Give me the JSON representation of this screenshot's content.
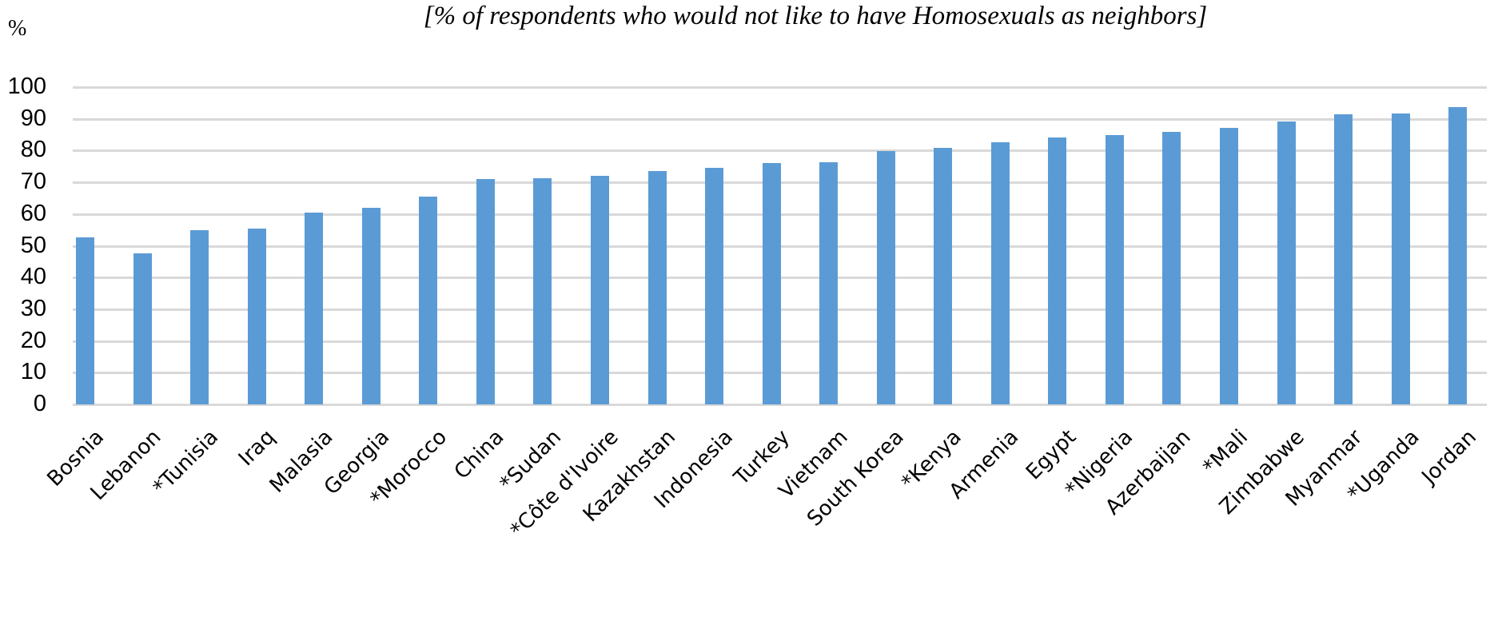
{
  "chart_data": {
    "type": "bar",
    "title": "[% of respondents who would not like to have Homosexuals as neighbors]",
    "xlabel": "",
    "ylabel": "%",
    "ylim": [
      0,
      100
    ],
    "yticks": [
      0,
      10,
      20,
      30,
      40,
      50,
      60,
      70,
      80,
      90,
      100
    ],
    "grid": true,
    "legend": null,
    "bar_color": "#5b9bd5",
    "categories": [
      "Bosnia",
      "Lebanon",
      "*Tunisia",
      "Iraq",
      "Malasia",
      "Georgia",
      "*Morocco",
      "China",
      "*Sudan",
      "*Côte d'Ivoire",
      "Kazakhstan",
      "Indonesia",
      "Turkey",
      "Vietnam",
      "South Korea",
      "*Kenya",
      "Armenia",
      "Egypt",
      "*Nigeria",
      "Azerbaijan",
      "*Mali",
      "Zimbabwe",
      "Myanmar",
      "*Uganda",
      "Jordan"
    ],
    "values": [
      52.6,
      47.7,
      55.0,
      55.3,
      60.5,
      62.0,
      65.4,
      71.0,
      71.2,
      72.0,
      73.5,
      74.5,
      76.0,
      76.3,
      79.8,
      80.8,
      82.6,
      84.2,
      84.8,
      86.0,
      87.1,
      89.2,
      91.4,
      91.7,
      93.8
    ]
  }
}
